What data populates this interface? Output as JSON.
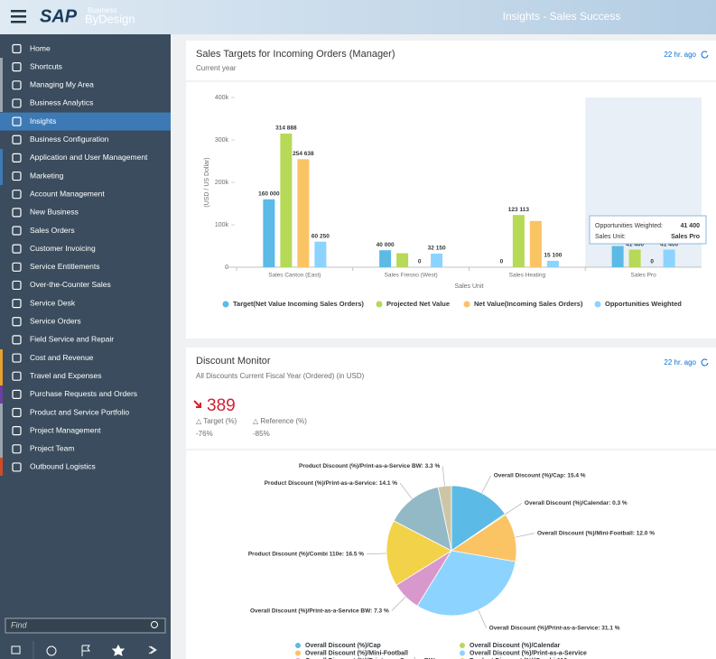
{
  "header": {
    "logo": "SAP",
    "logo_business": "Business",
    "logo_bydesign": "ByDesign",
    "title": "Insights - Sales Success"
  },
  "sidebar": {
    "items": [
      "Home",
      "Shortcuts",
      "Managing My Area",
      "Business Analytics",
      "Insights",
      "Business Configuration",
      "Application and User Management",
      "Marketing",
      "Account Management",
      "New Business",
      "Sales Orders",
      "Customer Invoicing",
      "Service Entitlements",
      "Over-the-Counter Sales",
      "Service Desk",
      "Service Orders",
      "Field Service and Repair",
      "Cost and Revenue",
      "Travel and Expenses",
      "Purchase Requests and Orders",
      "Product and Service Portfolio",
      "Project Management",
      "Project Team",
      "Outbound Logistics"
    ],
    "active_index": 4,
    "search_placeholder": "Find"
  },
  "chart_data": [
    {
      "type": "bar",
      "title": "Sales Targets for Incoming Orders (Manager)",
      "subtitle": "Current year",
      "updated": "22 hr. ago",
      "x_label": "Sales Unit",
      "y_label": "(USD / US Dollar)",
      "categories": [
        "Sales Canton (East)",
        "Sales Fresno (West)",
        "Sales Heating",
        "Sales Pro"
      ],
      "series": [
        {
          "name": "Target(Net Value Incoming Sales Orders)",
          "color": "#5cbae6",
          "values": [
            160000,
            40000,
            0,
            50000
          ],
          "value_labels": [
            "160 000",
            "40 000",
            "0",
            null
          ]
        },
        {
          "name": "Projected Net Value",
          "color": "#b6d957",
          "values": [
            314888,
            33000,
            123113,
            41400
          ],
          "value_labels": [
            "314 888",
            null,
            "123 113",
            "41 400"
          ]
        },
        {
          "name": "Net Value(Incoming Sales Orders)",
          "color": "#fac364",
          "values": [
            254638,
            0,
            109000,
            0
          ],
          "value_labels": [
            "254 638",
            "0",
            null,
            "0"
          ]
        },
        {
          "name": "Opportunities Weighted",
          "color": "#8cd3ff",
          "values": [
            60250,
            32150,
            15100,
            41400
          ],
          "value_labels": [
            "60 250",
            "32 150",
            "15 100",
            "41 400"
          ]
        }
      ],
      "ylim": [
        0,
        400000
      ],
      "yticks": [
        0,
        {
          "value": 100000,
          "label": "100k"
        },
        {
          "value": 200000,
          "label": "200k"
        },
        {
          "value": 300000,
          "label": "300k"
        },
        {
          "value": 400000,
          "label": "400k"
        }
      ],
      "grid": false,
      "legend": "bottom",
      "highlight_index": 3,
      "tooltip": {
        "series": "Opportunities Weighted:",
        "value": "41 400",
        "category_key": "Sales Unit:",
        "category": "Sales Pro"
      }
    },
    {
      "type": "pie",
      "title": "Discount Monitor",
      "subtitle": "All Discounts Current Fiscal Year (Ordered) (in USD)",
      "updated": "22 hr. ago",
      "kpi": {
        "value": 389,
        "trend": "down",
        "target_label": "△ Target (%)",
        "target_value": "-76%",
        "reference_label": "△ Reference (%)",
        "reference_value": "-85%"
      },
      "categories": [
        "Overall Discount (%)/Cap",
        "Overall Discount (%)/Calendar",
        "Overall Discount (%)/Mini-Football",
        "Overall Discount (%)/Print-as-a-Service",
        "Overall Discount (%)/Print-as-a-Service BW",
        "Product Discount (%)/Combi 110e",
        "Product Discount (%)/Print-as-a-Service",
        "Product Discount (%)/Print-as-a-Service BW"
      ],
      "values": [
        15.4,
        0.3,
        12.0,
        31.1,
        7.3,
        16.5,
        14.1,
        3.3
      ],
      "value_labels": [
        "Overall Discount (%)/Cap: 15.4 %",
        "Overall Discount (%)/Calendar: 0.3 %",
        "Overall Discount (%)/Mini-Football: 12.0 %",
        "Overall Discount (%)/Print-as-a-Service: 31.1 %",
        "Overall Discount (%)/Print-as-a-Service BW: 7.3 %",
        "Product Discount (%)/Combi 110e: 16.5 %",
        "Product Discount (%)/Print-as-a-Service: 14.1 %",
        "Product Discount (%)/Print-as-a-Service BW: 3.3 %"
      ],
      "colors": [
        "#5cbae6",
        "#b6d957",
        "#fac364",
        "#8cd3ff",
        "#d998cb",
        "#f2d249",
        "#93b9c6",
        "#ccc5a8"
      ],
      "legend": "bottom"
    }
  ]
}
